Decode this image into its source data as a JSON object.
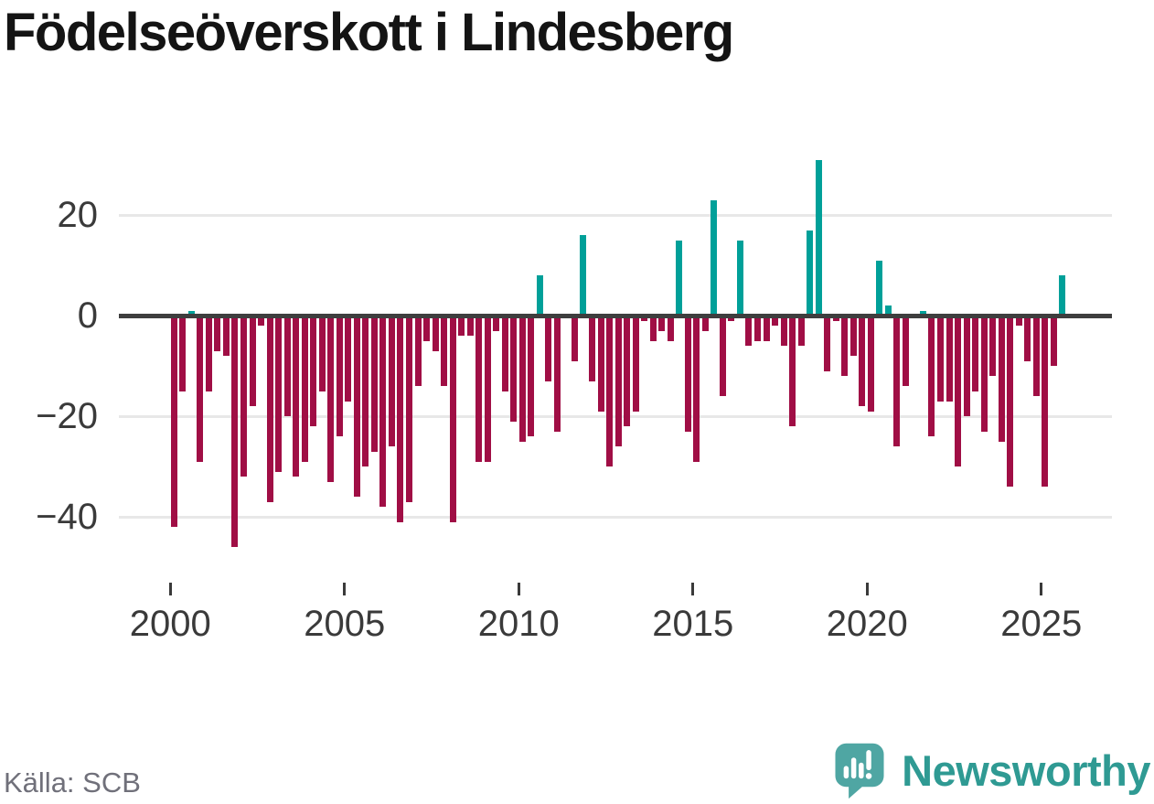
{
  "title": "Födelseöverskott i Lindesberg",
  "source": "Källa: SCB",
  "branding": {
    "logo_text": "Newsworthy",
    "logo_icon": "speech-bubble-bar-chart-icon",
    "logo_text_color": "#2f9a93",
    "logo_bubble_color": "#4fa6a3"
  },
  "chart_data": {
    "type": "bar",
    "title": "Födelseöverskott i Lindesberg",
    "xlabel": "",
    "ylabel": "",
    "frequency": "quarterly",
    "x_range": [
      "2000Q1",
      "2025Q3"
    ],
    "ylim": [
      -48,
      34
    ],
    "grid": "horizontal",
    "legend": "none",
    "y_ticks": [
      {
        "label": "20",
        "value": 20
      },
      {
        "label": "0",
        "value": 0
      },
      {
        "label": "−20",
        "value": -20
      },
      {
        "label": "−40",
        "value": -40
      }
    ],
    "x_ticks": [
      {
        "label": "2000",
        "year": 2000
      },
      {
        "label": "2005",
        "year": 2005
      },
      {
        "label": "2010",
        "year": 2010
      },
      {
        "label": "2015",
        "year": 2015
      },
      {
        "label": "2020",
        "year": 2020
      },
      {
        "label": "2025",
        "year": 2025
      }
    ],
    "colors": {
      "positive": "#00a099",
      "negative": "#a00e45",
      "zero_axis": "#3e3e3e",
      "gridline": "#e8e8e8"
    },
    "series_name": "Födelseöverskott per kvartal",
    "values_by_year": {
      "2000": [
        -42,
        -15,
        1,
        -29
      ],
      "2001": [
        -15,
        -7,
        -8,
        -46
      ],
      "2002": [
        -32,
        -18,
        -2,
        -37
      ],
      "2003": [
        -31,
        -20,
        -32,
        -29
      ],
      "2004": [
        -22,
        -15,
        -33,
        -24
      ],
      "2005": [
        -17,
        -36,
        -30,
        -27
      ],
      "2006": [
        -38,
        -26,
        -41,
        -37
      ],
      "2007": [
        -14,
        -5,
        -7,
        -14
      ],
      "2008": [
        -41,
        -4,
        -4,
        -29
      ],
      "2009": [
        -29,
        -3,
        -15,
        -21
      ],
      "2010": [
        -25,
        -24,
        8,
        -13
      ],
      "2011": [
        -23,
        0,
        -9,
        16
      ],
      "2012": [
        -13,
        -19,
        -30,
        -26
      ],
      "2013": [
        -22,
        -19,
        -1,
        -5
      ],
      "2014": [
        -3,
        -5,
        15,
        -23
      ],
      "2015": [
        -29,
        -3,
        23,
        -16
      ],
      "2016": [
        -1,
        15,
        -6,
        -5
      ],
      "2017": [
        -5,
        -2,
        -6,
        -22
      ],
      "2018": [
        -6,
        17,
        31,
        -11
      ],
      "2019": [
        -1,
        -12,
        -8,
        -18
      ],
      "2020": [
        -19,
        11,
        2,
        -26
      ],
      "2021": [
        -14,
        0,
        1,
        -24
      ],
      "2022": [
        -17,
        -17,
        -30,
        -20
      ],
      "2023": [
        -15,
        -23,
        -12,
        -25
      ],
      "2024": [
        -34,
        -2,
        -9,
        -16
      ],
      "2025": [
        -34,
        -10,
        8
      ]
    }
  }
}
